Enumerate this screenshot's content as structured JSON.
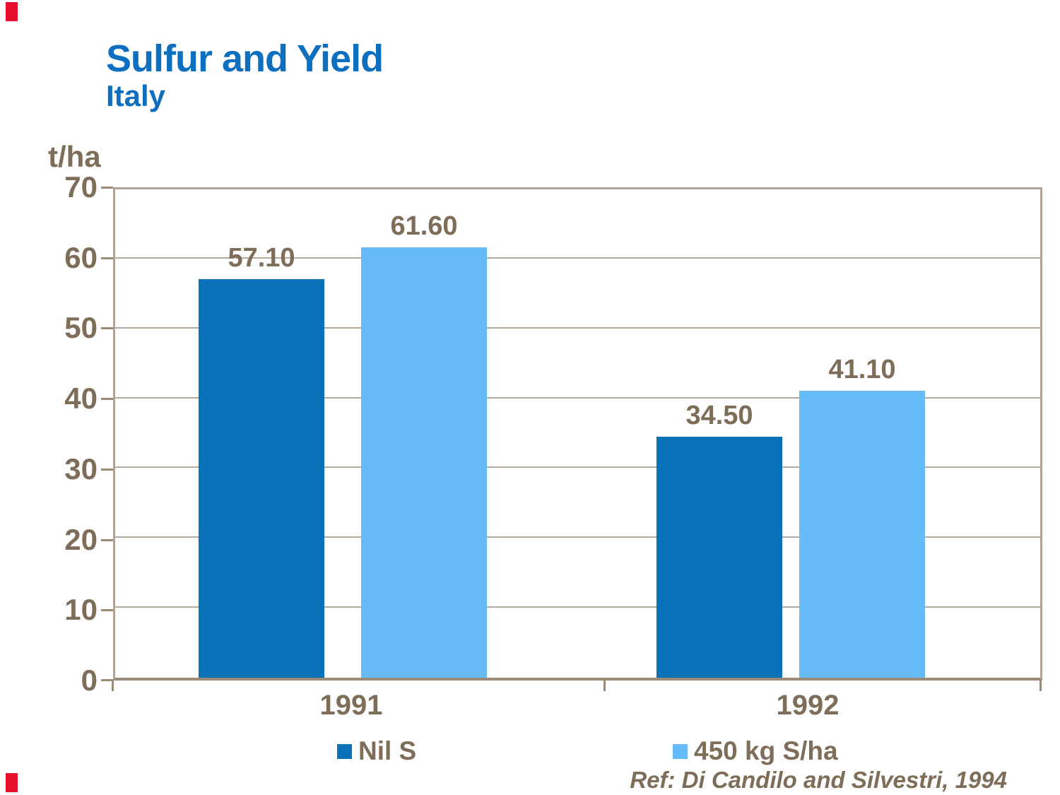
{
  "slide": {
    "title": "Sulfur and Yield",
    "subtitle": "Italy",
    "reference": "Ref: Di Candilo and Silvestri, 1994",
    "accent_mark_color": "#E8112D"
  },
  "chart_data": {
    "type": "bar",
    "title": "Sulfur and Yield",
    "subtitle": "Italy",
    "ylabel": "t/ha",
    "unit_label": "t/ha",
    "categories": [
      "1991",
      "1992"
    ],
    "series": [
      {
        "name": "Nil S",
        "color": "#0971B8",
        "values": [
          57.1,
          34.5
        ],
        "labels": [
          "57.10",
          "34.50"
        ]
      },
      {
        "name": "450 kg S/ha",
        "color": "#66BCF8",
        "values": [
          61.6,
          41.1
        ],
        "labels": [
          "61.60",
          "41.10"
        ]
      }
    ],
    "ylim": [
      0,
      70
    ],
    "ytick_interval": 10,
    "yticks": [
      "70",
      "60",
      "50",
      "40",
      "30",
      "20",
      "10",
      "0"
    ],
    "grid": true,
    "legend_position": "bottom",
    "text_color": "#7E6D58",
    "frame_color": "#AFA296"
  }
}
